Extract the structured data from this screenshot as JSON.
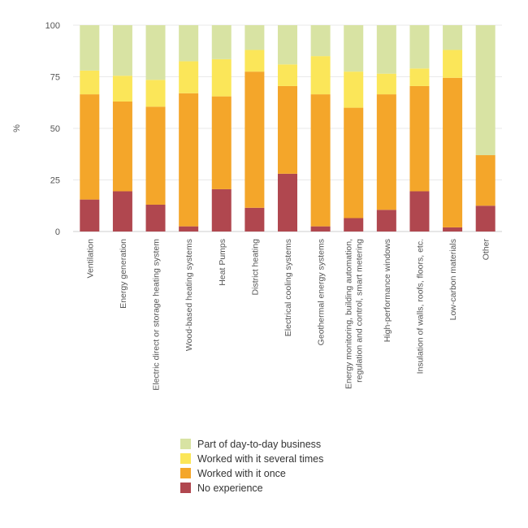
{
  "chart_data": {
    "type": "bar",
    "stacked": true,
    "ylabel": "%",
    "ylim": [
      0,
      100
    ],
    "yticks": [
      0,
      25,
      50,
      75,
      100
    ],
    "grid": true,
    "legend_position": "bottom",
    "categories": [
      [
        "Ventilation"
      ],
      [
        "Energy generation"
      ],
      [
        "Electric direct or storage heating system"
      ],
      [
        "Wood-based heating systems"
      ],
      [
        "Heat Pumps"
      ],
      [
        "District heating"
      ],
      [
        "Electrical cooling systems"
      ],
      [
        "Geothermal energy systems"
      ],
      [
        "Energy monitoring, building automation,",
        "regulation and control, smart metering"
      ],
      [
        "High-performance windows"
      ],
      [
        "Insulation of walls, roofs, floors, etc."
      ],
      [
        "Low-carbon materials"
      ],
      [
        "Other"
      ]
    ],
    "series": [
      {
        "name": "No experience",
        "color": "#b0474f",
        "values": [
          15.5,
          19.5,
          13,
          2.5,
          20.5,
          11.5,
          28,
          2.5,
          6.5,
          10.5,
          19.5,
          2,
          12.5
        ]
      },
      {
        "name": "Worked with it once",
        "color": "#f4a62a",
        "values": [
          51,
          43.5,
          47.5,
          64.5,
          45,
          66,
          42.5,
          64,
          53.5,
          56,
          51,
          72.5,
          24.5
        ]
      },
      {
        "name": "Worked with it several times",
        "color": "#fbe659",
        "values": [
          11.5,
          12.5,
          13,
          15.5,
          18,
          10.5,
          10.5,
          18.5,
          17.5,
          10,
          8.5,
          13.5,
          0
        ]
      },
      {
        "name": "Part of day-to-day business",
        "color": "#d8e3a3",
        "values": [
          22,
          24.5,
          26.5,
          17.5,
          16.5,
          12,
          19,
          15,
          22.5,
          23.5,
          21,
          12,
          63
        ]
      }
    ],
    "legend_order": [
      "Part of day-to-day business",
      "Worked with it several times",
      "Worked with it once",
      "No experience"
    ]
  }
}
